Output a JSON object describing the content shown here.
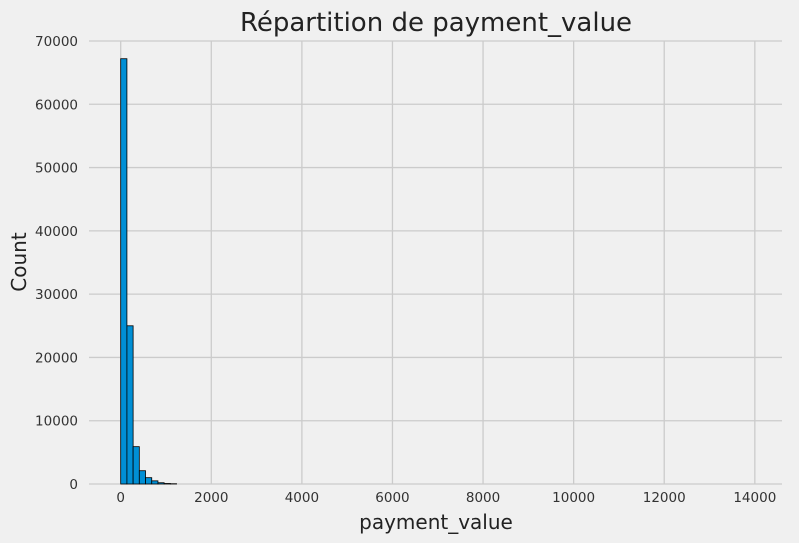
{
  "chart_data": {
    "type": "bar",
    "title": "Répartition de payment_value",
    "xlabel": "payment_value",
    "ylabel": "Count",
    "xlim": [
      -700,
      14600
    ],
    "ylim": [
      0,
      70000
    ],
    "xticks": [
      0,
      2000,
      4000,
      6000,
      8000,
      10000,
      12000,
      14000
    ],
    "yticks": [
      0,
      10000,
      20000,
      30000,
      40000,
      50000,
      60000,
      70000
    ],
    "bin_width": 137,
    "bin_start": 0,
    "bins": [
      {
        "x0": 0,
        "x1": 137,
        "count": 67200
      },
      {
        "x0": 137,
        "x1": 274,
        "count": 25000
      },
      {
        "x0": 274,
        "x1": 411,
        "count": 5900
      },
      {
        "x0": 411,
        "x1": 548,
        "count": 2100
      },
      {
        "x0": 548,
        "x1": 685,
        "count": 1000
      },
      {
        "x0": 685,
        "x1": 822,
        "count": 500
      },
      {
        "x0": 822,
        "x1": 959,
        "count": 200
      },
      {
        "x0": 959,
        "x1": 1096,
        "count": 80
      },
      {
        "x0": 1096,
        "x1": 1233,
        "count": 40
      }
    ],
    "grid": true,
    "bar_color": "#008fd5",
    "edge_color": "#000000",
    "background": "#f0f0f0",
    "grid_color": "#cbcbcb"
  }
}
